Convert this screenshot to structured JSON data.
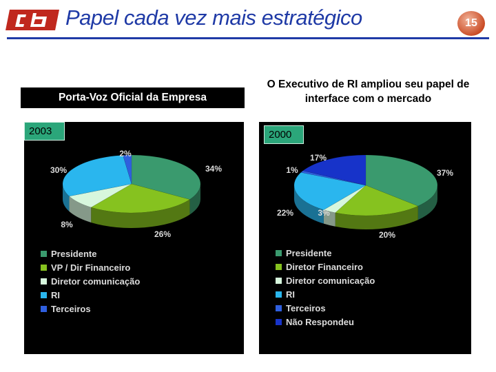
{
  "header": {
    "title": "Papel cada vez mais estratégico",
    "page_number": "15"
  },
  "colors": {
    "brand_blue": "#1f3aa6",
    "logo_red": "#c0281e"
  },
  "left": {
    "subtitle": "Porta-Voz Oficial da Empresa"
  },
  "right": {
    "subtitle": "O Executivo de RI ampliou seu papel de interface com o mercado"
  },
  "chart_data": [
    {
      "type": "pie",
      "year_label": "2003",
      "categories": [
        "Presidente",
        "VP / Dir Financeiro",
        "Diretor comunicação",
        "RI",
        "Terceiros"
      ],
      "values": [
        34,
        26,
        8,
        30,
        2
      ],
      "value_labels": [
        "34%",
        "26%",
        "8%",
        "30%",
        "2%"
      ],
      "colors": [
        "#3a9a6e",
        "#86c21f",
        "#d7f7dd",
        "#2ab6ee",
        "#2f5fde"
      ],
      "legend_position": "bottom"
    },
    {
      "type": "pie",
      "year_label": "2000",
      "categories": [
        "Presidente",
        "Diretor Financeiro",
        "Diretor comunicação",
        "RI",
        "Terceiros",
        "Não Respondeu"
      ],
      "values": [
        37,
        20,
        3,
        22,
        1,
        17
      ],
      "value_labels": [
        "37%",
        "20%",
        "3%",
        "22%",
        "1%",
        "17%"
      ],
      "colors": [
        "#3a9a6e",
        "#86c21f",
        "#d7f7dd",
        "#2ab6ee",
        "#2f5fde",
        "#1733c9"
      ],
      "legend_position": "bottom"
    }
  ]
}
